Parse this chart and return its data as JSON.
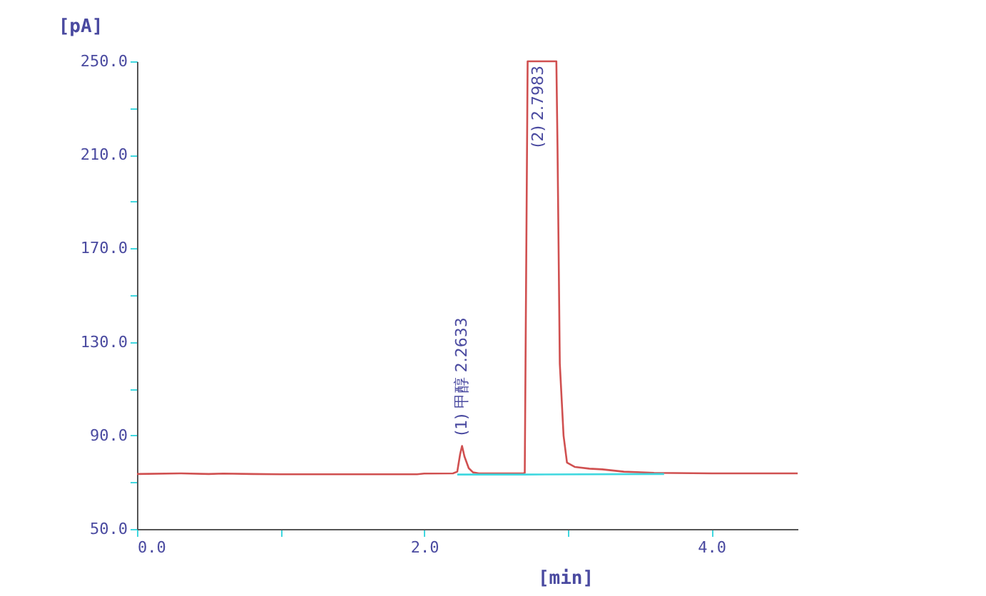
{
  "chart_data": {
    "type": "line",
    "xlabel": "[min]",
    "ylabel": "[pA]",
    "xlim": [
      0,
      4.6
    ],
    "xticks": [
      {
        "value": 0,
        "label": "0.0"
      },
      {
        "value": 1,
        "label": null
      },
      {
        "value": 2,
        "label": "2.0"
      },
      {
        "value": 3,
        "label": null
      },
      {
        "value": 4,
        "label": "4.0"
      }
    ],
    "ylim": [
      50,
      250
    ],
    "yticks": [
      {
        "value": 50,
        "label": "50.0"
      },
      {
        "value": 70,
        "label": null
      },
      {
        "value": 90,
        "label": "90.0"
      },
      {
        "value": 110,
        "label": null
      },
      {
        "value": 130,
        "label": "130.0"
      },
      {
        "value": 150,
        "label": null
      },
      {
        "value": 170,
        "label": "170.0"
      },
      {
        "value": 190,
        "label": null
      },
      {
        "value": 210,
        "label": "210.0"
      },
      {
        "value": 230,
        "label": null
      },
      {
        "value": 250,
        "label": "250.0"
      }
    ],
    "grid": false,
    "marker": "none",
    "line_style": "solid",
    "series": [
      {
        "color": "#d05050",
        "x": [
          0,
          0.3,
          0.5,
          0.6,
          0.8,
          1.0,
          1.5,
          1.95,
          2.0,
          2.2,
          2.23,
          2.25,
          2.2633,
          2.28,
          2.31,
          2.34,
          2.38,
          2.5,
          2.69,
          2.7,
          2.72,
          2.92,
          2.928,
          2.944,
          2.97,
          2.994,
          3.05,
          3.15,
          3.24,
          3.39,
          3.6,
          4.0,
          4.6
        ],
        "values": [
          73.5,
          73.8,
          73.5,
          73.7,
          73.5,
          73.4,
          73.4,
          73.4,
          73.7,
          73.8,
          74.5,
          82,
          85.5,
          81,
          76,
          74.2,
          73.8,
          73.8,
          73.8,
          74,
          250,
          250,
          213.5,
          120.7,
          90,
          78.4,
          76.5,
          75.8,
          75.5,
          74.5,
          74,
          73.8,
          73.8
        ]
      },
      {
        "color": "#40d8e0",
        "x": [
          2.23,
          2.69,
          3.67
        ],
        "values": [
          73.3,
          73.3,
          73.5
        ]
      }
    ],
    "annotations": [
      {
        "text": "(1) 甲醇 2.2633",
        "x": 2.2633,
        "y": 88
      },
      {
        "text": "(2) 2.7983",
        "x": 2.7983,
        "y": 250
      }
    ]
  }
}
